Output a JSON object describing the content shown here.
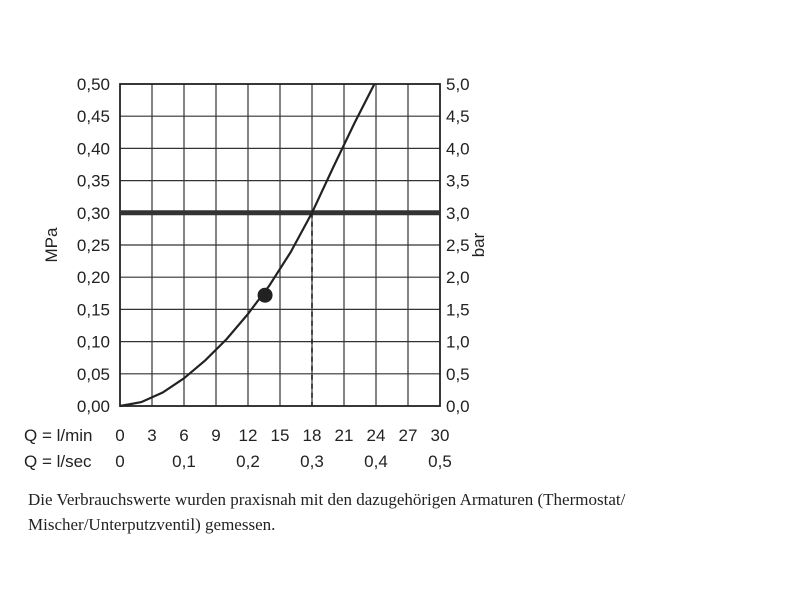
{
  "chart_data": {
    "type": "line",
    "title": "",
    "ylabel_left": "MPa",
    "ylabel_right": "bar",
    "xlim_lmin": [
      0,
      30
    ],
    "ylim_mpa": [
      0,
      0.5
    ],
    "grid": true,
    "y_ticks_left": [
      "0,00",
      "0,05",
      "0,10",
      "0,15",
      "0,20",
      "0,25",
      "0,30",
      "0,35",
      "0,40",
      "0,45",
      "0,50"
    ],
    "y_ticks_right": [
      "0,0",
      "0,5",
      "1,0",
      "1,5",
      "2,0",
      "2,5",
      "3,0",
      "3,5",
      "4,0",
      "4,5",
      "5,0"
    ],
    "x_row1_label": "Q = l/min",
    "x_row1_ticks": [
      "0",
      "3",
      "6",
      "9",
      "12",
      "15",
      "18",
      "21",
      "24",
      "27",
      "30"
    ],
    "x_row2_label": "Q = l/sec",
    "x_row2_ticks": [
      "0",
      "0,1",
      "0,2",
      "0,3",
      "0,4",
      "0,5"
    ],
    "series": [
      {
        "x": [
          0,
          2,
          4,
          6,
          8,
          10,
          12,
          14,
          16,
          18,
          20,
          22,
          24
        ],
        "y": [
          0.0,
          0.006,
          0.021,
          0.043,
          0.071,
          0.104,
          0.143,
          0.187,
          0.239,
          0.3,
          0.371,
          0.44,
          0.505
        ]
      }
    ],
    "reference_line_mpa": 0.3,
    "operating_point": {
      "x": 18,
      "y": 0.3
    },
    "marker_point": {
      "x": 13.6,
      "y": 0.172
    }
  },
  "caption": "Die Verbrauchswerte wurden praxisnah mit den dazugehörigen Armaturen (Thermostat/ Mischer/Unterputzventil) gemessen."
}
